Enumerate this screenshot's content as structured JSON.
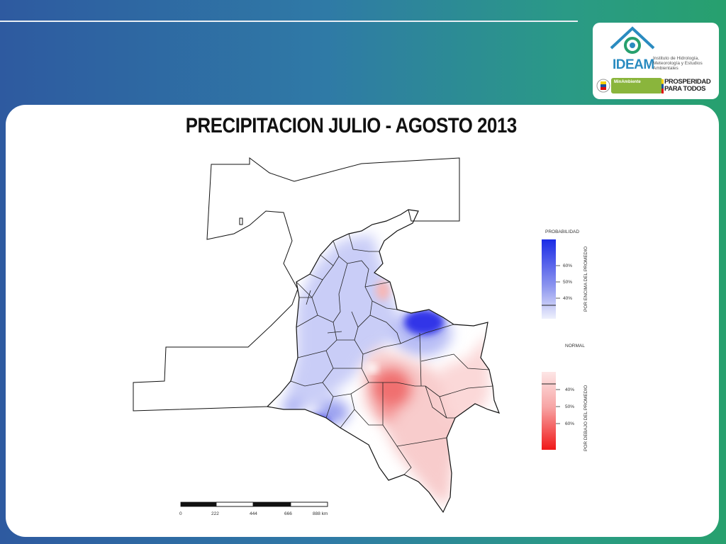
{
  "title": "PRECIPITACION JULIO - AGOSTO 2013",
  "logo": {
    "name": "IDEAM",
    "subtitle": "Instituto de Hidrología, Meteorología y Estudios Ambientales",
    "ministry": "MinAmbiente",
    "slogan": "PROSPERIDAD PARA TODOS"
  },
  "legend": {
    "heading": "PROBABILIDAD",
    "above": {
      "caption": "POR ENCIMA DEL PROMEDIO",
      "ticks": [
        "60%",
        "50%",
        "40%"
      ],
      "color": "#1a2be6"
    },
    "normal_label": "NORMAL",
    "below": {
      "caption": "POR DEBAJO DEL PROMEDIO",
      "ticks": [
        "40%",
        "50%",
        "60%"
      ],
      "color": "#f01818"
    }
  },
  "scale_bar": {
    "labels": [
      "0",
      "222",
      "444",
      "666",
      "888 km"
    ]
  },
  "colors": {
    "above_light": "#c9cdf7",
    "above_dark": "#3034e8",
    "below_light": "#f8cccc",
    "below_dark": "#f07070"
  }
}
